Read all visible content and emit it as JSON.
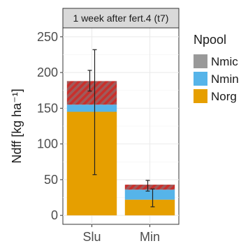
{
  "chart_data": {
    "type": "bar",
    "stacked": true,
    "facet_title": "1 week after fert.4 (t7)",
    "categories": [
      "Slu",
      "Min"
    ],
    "xlabel": "",
    "ylabel": "Ndff [kg ha⁻¹]",
    "ylim": [
      0,
      250
    ],
    "yticks": [
      0,
      50,
      100,
      150,
      200,
      250
    ],
    "grid": true,
    "legend": {
      "title": "Npool",
      "placement": "right",
      "entries": [
        "Nmic",
        "Nmin",
        "Norg"
      ]
    },
    "series": [
      {
        "name": "Norg",
        "values": [
          145,
          22
        ],
        "color": "#E69F00",
        "error_bar": [
          [
            57,
            232
          ],
          [
            12,
            37
          ]
        ]
      },
      {
        "name": "Nmin",
        "values": [
          10,
          14
        ],
        "color": "#56B4E9"
      },
      {
        "name": "Nmic",
        "values": [
          33,
          7
        ],
        "color": "#999999",
        "pattern": "red-hatch",
        "error_bar": [
          [
            174,
            203
          ],
          [
            34,
            49
          ]
        ]
      }
    ]
  }
}
